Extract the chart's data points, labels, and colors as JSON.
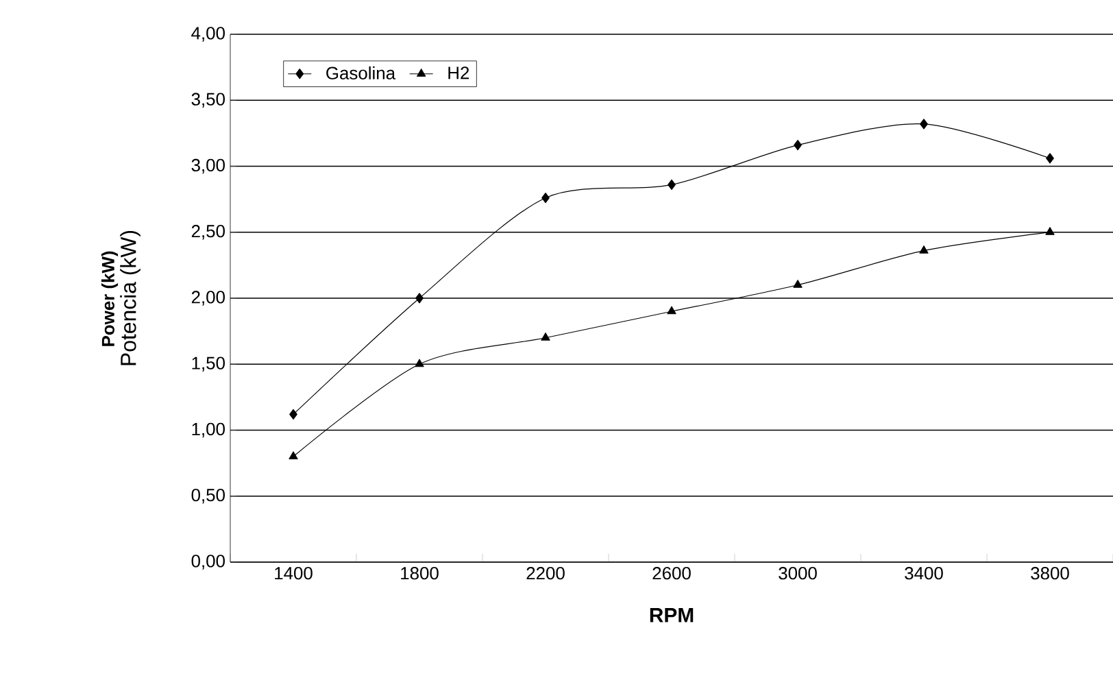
{
  "chart_data": {
    "type": "line",
    "xlabel": "RPM",
    "ylabel": "Potencia (kW)",
    "annotations": [
      "Power (kW)"
    ],
    "categories": [
      "1400",
      "1800",
      "2200",
      "2600",
      "3000",
      "3400",
      "3800"
    ],
    "series": [
      {
        "name": "Gasolina",
        "color": "#000000",
        "marker": "diamond",
        "values": [
          1.12,
          2.0,
          2.76,
          2.86,
          3.16,
          3.32,
          3.06
        ]
      },
      {
        "name": "H2",
        "color": "#000000",
        "marker": "triangle",
        "values": [
          0.8,
          1.5,
          1.7,
          1.9,
          2.1,
          2.36,
          2.5
        ]
      }
    ],
    "ylim": [
      0,
      4
    ],
    "yticks": [
      {
        "value": 0,
        "label": "0,00"
      },
      {
        "value": 0.5,
        "label": "0,50"
      },
      {
        "value": 1,
        "label": "1,00"
      },
      {
        "value": 1.5,
        "label": "1,50"
      },
      {
        "value": 2,
        "label": "2,00"
      },
      {
        "value": 2.5,
        "label": "2,50"
      },
      {
        "value": 3,
        "label": "3,00"
      },
      {
        "value": 3.5,
        "label": "3,50"
      },
      {
        "value": 4,
        "label": "4,00"
      }
    ],
    "grid": "y",
    "legend": "top left",
    "line_style": "solid"
  }
}
